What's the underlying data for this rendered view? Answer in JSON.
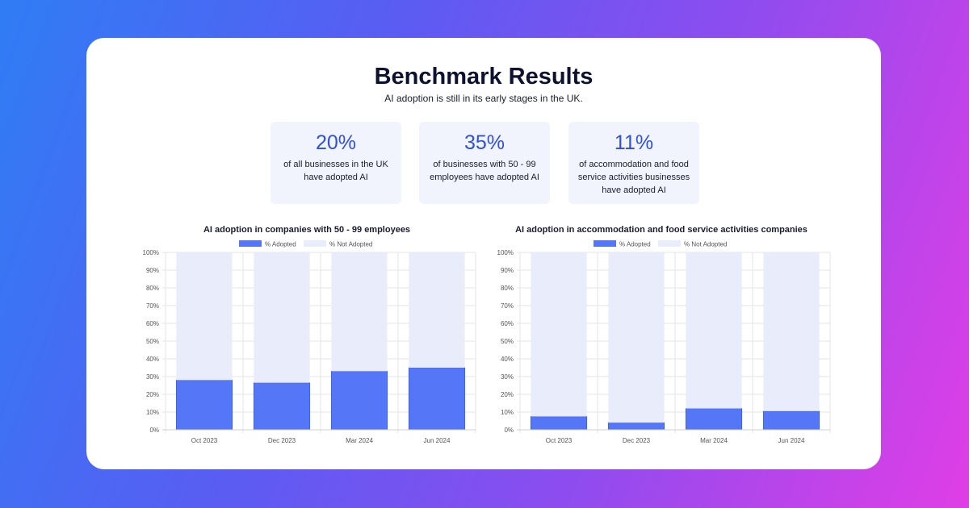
{
  "page": {
    "title": "Benchmark Results",
    "subtitle": "AI adoption is still in its early stages in the UK."
  },
  "stats": [
    {
      "value": "20%",
      "text": "of all businesses in the UK have adopted AI"
    },
    {
      "value": "35%",
      "text": "of businesses with 50 - 99 employees have adopted AI"
    },
    {
      "value": "11%",
      "text": "of accommodation and food service activities businesses have adopted AI"
    }
  ],
  "colors": {
    "adopted": "#5577f7",
    "not_adopted": "#e8ecfb",
    "stat_value": "#2e4fe0"
  },
  "chart_data": [
    {
      "type": "bar",
      "stacked": true,
      "title": "AI adoption in companies with 50 - 99 employees",
      "categories": [
        "Oct 2023",
        "Dec 2023",
        "Mar 2024",
        "Jun 2024"
      ],
      "series": [
        {
          "name": "% Adopted",
          "values": [
            28,
            26.5,
            33,
            35
          ]
        },
        {
          "name": "% Not Adopted",
          "values": [
            72,
            73.5,
            67,
            65
          ]
        }
      ],
      "ylim": [
        0,
        100
      ],
      "yticks": [
        "0%",
        "10%",
        "20%",
        "30%",
        "40%",
        "50%",
        "60%",
        "70%",
        "80%",
        "90%",
        "100%"
      ],
      "grid": true,
      "legend": "top-center"
    },
    {
      "type": "bar",
      "stacked": true,
      "title": "AI adoption in accommodation and food service activities companies",
      "categories": [
        "Oct 2023",
        "Dec 2023",
        "Mar 2024",
        "Jun 2024"
      ],
      "series": [
        {
          "name": "% Adopted",
          "values": [
            7.5,
            4,
            12,
            10.5
          ]
        },
        {
          "name": "% Not Adopted",
          "values": [
            92.5,
            96,
            88,
            89.5
          ]
        }
      ],
      "ylim": [
        0,
        100
      ],
      "yticks": [
        "0%",
        "10%",
        "20%",
        "30%",
        "40%",
        "50%",
        "60%",
        "70%",
        "80%",
        "90%",
        "100%"
      ],
      "grid": true,
      "legend": "top-center"
    }
  ]
}
